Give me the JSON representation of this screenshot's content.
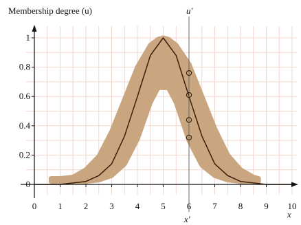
{
  "chart_data": {
    "type": "line",
    "title": "",
    "ylabel": "Membership degree (u)",
    "xlabel": "x",
    "x_ticks": [
      "0",
      "1",
      "2",
      "3",
      "4",
      "5",
      "6",
      "7",
      "8",
      "9",
      "10"
    ],
    "y_ticks": [
      "0",
      "0.2",
      "0.4",
      "0.6",
      "0.8",
      "1"
    ],
    "xlim": [
      0,
      10
    ],
    "ylim": [
      0,
      1.05
    ],
    "grid": true,
    "vertical_marker": {
      "x": 6,
      "top_label": "u'",
      "bottom_label": "x'"
    },
    "primary_membership_points": [
      0.76,
      0.61,
      0.44,
      0.32
    ],
    "series": [
      {
        "kind": "center_line",
        "x": [
          0,
          1,
          1.5,
          2,
          2.5,
          3,
          3.5,
          4,
          4.5,
          5,
          5.5,
          6,
          6.5,
          7,
          7.5,
          8,
          8.5,
          9,
          10
        ],
        "y": [
          0,
          0,
          0.01,
          0.02,
          0.06,
          0.14,
          0.33,
          0.6,
          0.88,
          1.0,
          0.88,
          0.6,
          0.33,
          0.14,
          0.06,
          0.02,
          0.01,
          0,
          0
        ]
      },
      {
        "kind": "uncertainty_band_upper",
        "x": [
          0.65,
          1,
          1.5,
          2,
          2.5,
          3,
          3.5,
          4,
          4.5,
          4.8,
          5,
          5.2,
          5.5,
          6,
          6.5,
          7,
          7.5,
          8,
          8.5,
          8.7
        ],
        "y": [
          0.04,
          0.04,
          0.05,
          0.1,
          0.19,
          0.36,
          0.58,
          0.8,
          0.95,
          0.99,
          1.0,
          0.99,
          0.95,
          0.82,
          0.6,
          0.38,
          0.2,
          0.1,
          0.05,
          0.04
        ]
      },
      {
        "kind": "uncertainty_band_lower",
        "x": [
          0.65,
          1,
          1.5,
          2,
          2.5,
          3,
          3.5,
          4,
          4.5,
          4.8,
          5,
          5.2,
          5.5,
          6,
          6.5,
          7,
          7.5,
          8,
          8.5,
          8.7
        ],
        "y": [
          0.02,
          0.02,
          0.02,
          0.02,
          0.03,
          0.06,
          0.14,
          0.31,
          0.56,
          0.66,
          0.66,
          0.66,
          0.56,
          0.3,
          0.13,
          0.06,
          0.03,
          0.02,
          0.02,
          0.02
        ]
      }
    ],
    "colors": {
      "band": "#c9a680",
      "center_line": "#3b1e08",
      "grid": "#f1d7cf",
      "axis": "#111111",
      "marker_line": "#666666"
    }
  }
}
